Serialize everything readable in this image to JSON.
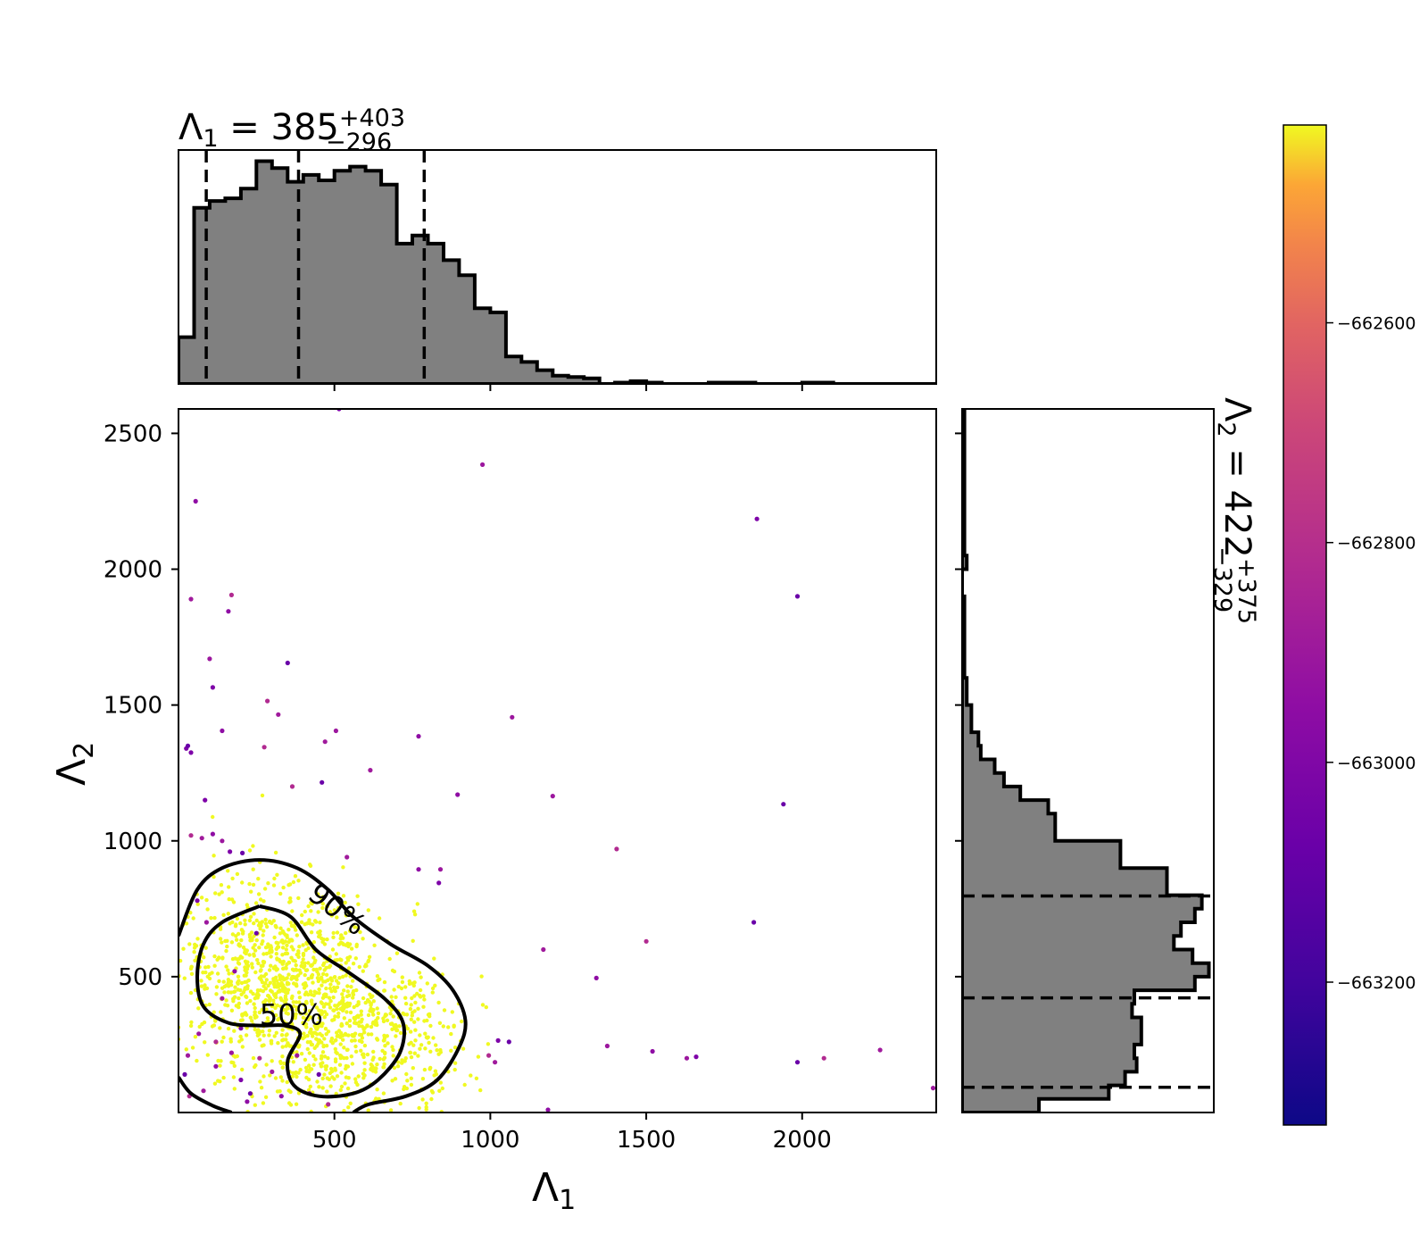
{
  "chart_data": {
    "type": "scatter",
    "main_panel": {
      "xlabel_base": "Λ",
      "xlabel_sub": "1",
      "ylabel_base": "Λ",
      "ylabel_sub": "2",
      "xlim": [
        0,
        2430
      ],
      "ylim": [
        0,
        2590
      ],
      "x_ticks": [
        500,
        1000,
        1500,
        2000
      ],
      "y_ticks": [
        500,
        1000,
        1500,
        2000,
        2500
      ],
      "grid": false,
      "contour_labels": [
        "50%",
        "90%"
      ],
      "contours": [
        {
          "label": "90%",
          "points": [
            [
              0,
              650
            ],
            [
              60,
              820
            ],
            [
              140,
              900
            ],
            [
              260,
              930
            ],
            [
              380,
              900
            ],
            [
              480,
              820
            ],
            [
              560,
              720
            ],
            [
              680,
              620
            ],
            [
              800,
              540
            ],
            [
              880,
              450
            ],
            [
              920,
              340
            ],
            [
              900,
              240
            ],
            [
              830,
              120
            ],
            [
              730,
              60
            ],
            [
              610,
              30
            ],
            [
              560,
              0
            ]
          ]
        },
        {
          "label": "90%",
          "points": [
            [
              0,
              130
            ],
            [
              40,
              70
            ],
            [
              110,
              25
            ],
            [
              170,
              0
            ]
          ]
        },
        {
          "label": "50%",
          "points": [
            [
              260,
              760
            ],
            [
              360,
              720
            ],
            [
              440,
              600
            ],
            [
              540,
              520
            ],
            [
              660,
              420
            ],
            [
              720,
              330
            ],
            [
              710,
              220
            ],
            [
              640,
              120
            ],
            [
              560,
              70
            ],
            [
              450,
              60
            ],
            [
              370,
              100
            ],
            [
              350,
              190
            ],
            [
              390,
              290
            ],
            [
              340,
              320
            ],
            [
              260,
              320
            ],
            [
              160,
              330
            ],
            [
              80,
              390
            ],
            [
              60,
              500
            ],
            [
              80,
              620
            ],
            [
              140,
              700
            ],
            [
              260,
              760
            ]
          ]
        }
      ],
      "outliers": [
        [
          55,
          2250
        ],
        [
          975,
          2385
        ],
        [
          1855,
          2185
        ],
        [
          1985,
          1900
        ],
        [
          170,
          1905
        ],
        [
          40,
          1890
        ],
        [
          160,
          1845
        ],
        [
          100,
          1670
        ],
        [
          110,
          1565
        ],
        [
          350,
          1655
        ],
        [
          285,
          1515
        ],
        [
          320,
          1465
        ],
        [
          140,
          1405
        ],
        [
          505,
          1405
        ],
        [
          25,
          1340
        ],
        [
          30,
          1350
        ],
        [
          275,
          1345
        ],
        [
          470,
          1365
        ],
        [
          770,
          1385
        ],
        [
          1070,
          1455
        ],
        [
          40,
          1325
        ],
        [
          460,
          1215
        ],
        [
          365,
          1200
        ],
        [
          615,
          1260
        ],
        [
          895,
          1170
        ],
        [
          1200,
          1165
        ],
        [
          85,
          1150
        ],
        [
          1940,
          1135
        ],
        [
          40,
          1020
        ],
        [
          75,
          1010
        ],
        [
          110,
          1025
        ],
        [
          140,
          1000
        ],
        [
          165,
          960
        ],
        [
          205,
          955
        ],
        [
          1405,
          970
        ],
        [
          540,
          940
        ],
        [
          770,
          895
        ],
        [
          840,
          895
        ],
        [
          835,
          845
        ],
        [
          1845,
          700
        ],
        [
          1500,
          630
        ],
        [
          1170,
          600
        ],
        [
          1340,
          495
        ],
        [
          1375,
          245
        ],
        [
          1025,
          265
        ],
        [
          1060,
          260
        ],
        [
          995,
          210
        ],
        [
          1015,
          185
        ],
        [
          1520,
          225
        ],
        [
          1630,
          200
        ],
        [
          1660,
          205
        ],
        [
          1985,
          185
        ],
        [
          2070,
          200
        ],
        [
          2250,
          230
        ],
        [
          1185,
          10
        ],
        [
          2420,
          90
        ],
        [
          515,
          2590
        ],
        [
          20,
          140
        ],
        [
          35,
          60
        ],
        [
          80,
          80
        ],
        [
          120,
          170
        ],
        [
          170,
          220
        ],
        [
          200,
          120
        ],
        [
          230,
          70
        ],
        [
          260,
          200
        ],
        [
          300,
          150
        ],
        [
          330,
          60
        ],
        [
          380,
          210
        ],
        [
          420,
          70
        ],
        [
          450,
          140
        ],
        [
          480,
          30
        ],
        [
          140,
          420
        ],
        [
          180,
          520
        ],
        [
          90,
          700
        ],
        [
          60,
          780
        ],
        [
          250,
          660
        ],
        [
          120,
          260
        ],
        [
          30,
          210
        ],
        [
          220,
          40
        ],
        [
          65,
          290
        ],
        [
          200,
          310
        ]
      ],
      "colorbar": {
        "ticks": [
          -662600,
          -662800,
          -663000,
          -663200
        ],
        "vmin": -663330,
        "vmax": -662420
      }
    },
    "top_panel": {
      "title": "Λ₁ = 385 +403 −296",
      "title_base": "Λ",
      "title_sub": "1",
      "title_mid": " = 385",
      "title_sup": "+403",
      "title_lowsub": "−296",
      "type": "histogram",
      "bin_width": 50,
      "bin_start": 0,
      "values": [
        34,
        128,
        133,
        135,
        142,
        162,
        157,
        147,
        152,
        148,
        155,
        158,
        155,
        145,
        102,
        108,
        102,
        90,
        79,
        55,
        52,
        20,
        16,
        10,
        6,
        5,
        4,
        0,
        1,
        2,
        1,
        0,
        0,
        0,
        1,
        1,
        1,
        0,
        0,
        0,
        1,
        1,
        0,
        0,
        0,
        0,
        0,
        0,
        0
      ],
      "quantile_lines": [
        89,
        385,
        788
      ]
    },
    "right_panel": {
      "title": "Λ₂ = 422 +375 −329",
      "title_base": "Λ",
      "title_sub": "2",
      "title_mid": " = 422",
      "title_sup": "+375",
      "title_lowsub": "−329",
      "type": "histogram",
      "bin_width": 50,
      "bin_start": 0,
      "values": [
        33,
        63,
        70,
        75,
        74,
        77,
        77,
        73,
        74,
        100,
        106,
        99,
        91,
        94,
        100,
        103,
        88,
        88,
        68,
        68,
        40,
        40,
        37,
        25,
        18,
        14,
        8,
        7,
        4,
        4,
        2,
        2,
        1,
        1,
        1,
        1,
        1,
        1,
        0,
        0,
        2,
        1,
        1,
        1,
        1,
        1,
        1,
        1,
        1,
        1,
        1,
        1
      ],
      "quantile_lines": [
        93,
        422,
        797
      ]
    }
  }
}
